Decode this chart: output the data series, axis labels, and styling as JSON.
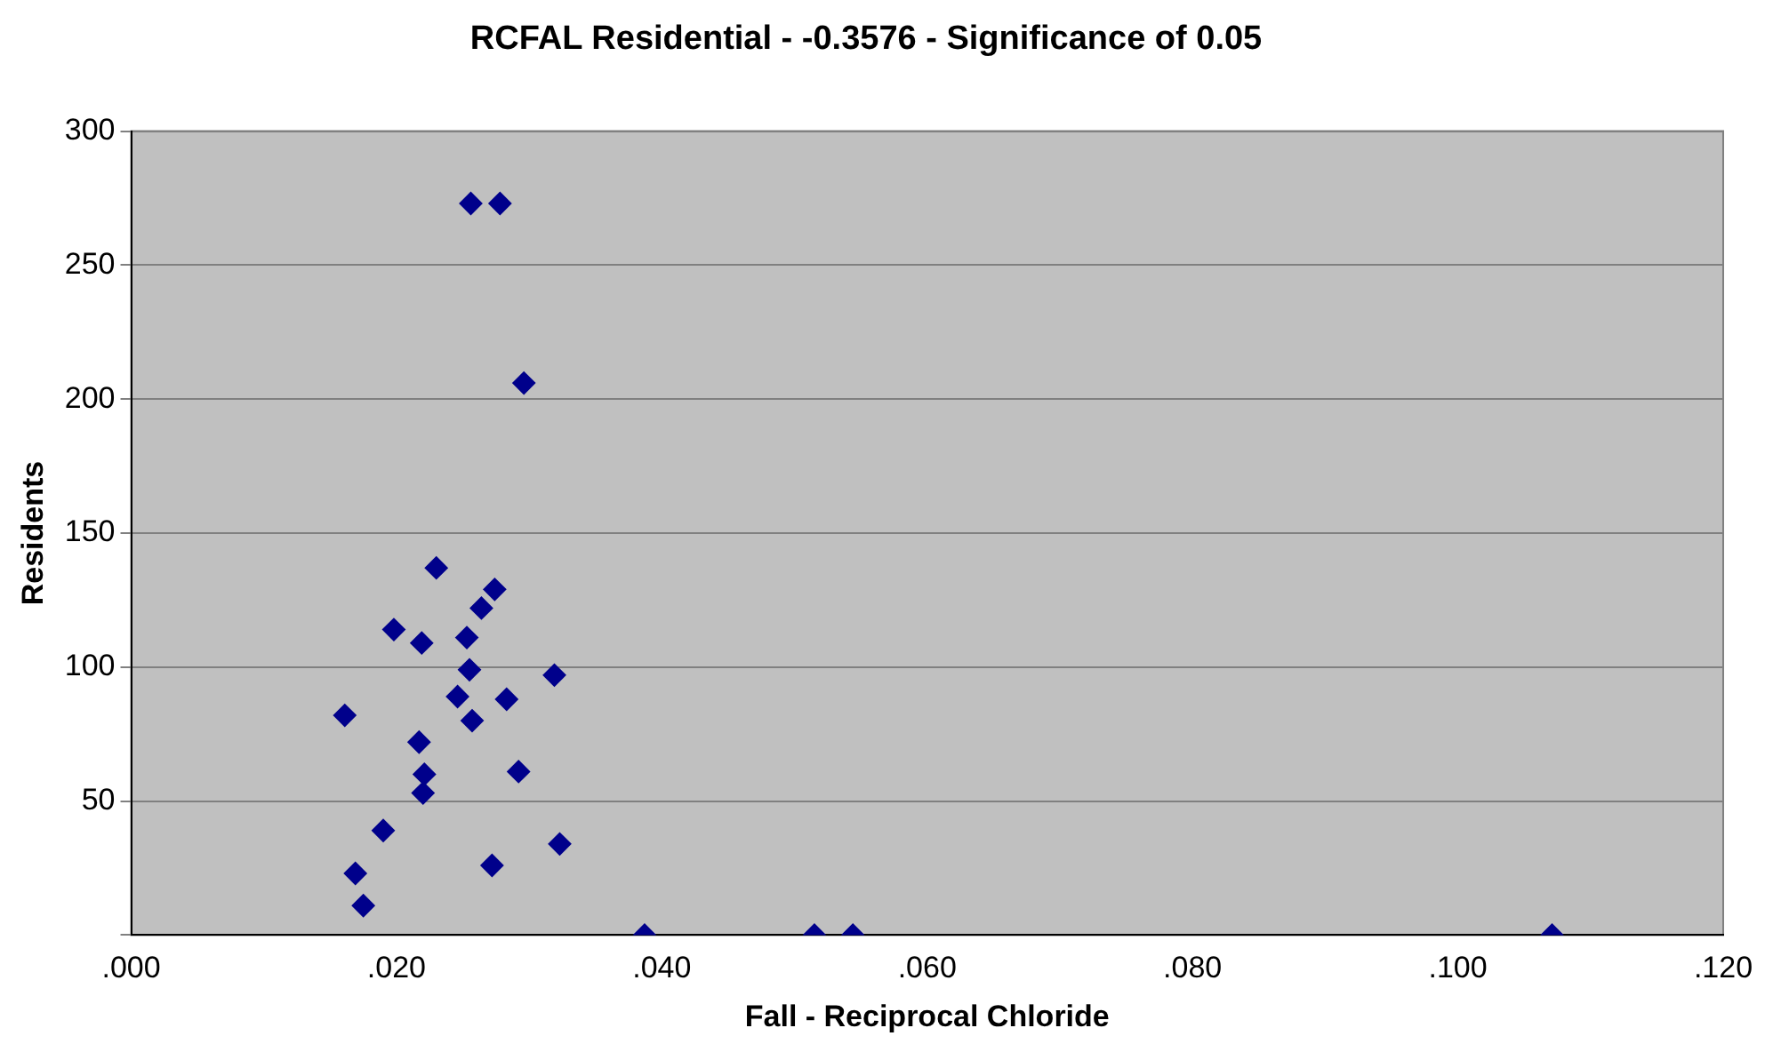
{
  "chart_data": {
    "type": "scatter",
    "title": "RCFAL Residential - -0.3576 - Significance of 0.05",
    "xlabel": "Fall - Reciprocal Chloride",
    "ylabel": "Residents",
    "x": [
      0.0256,
      0.0278,
      0.0296,
      0.023,
      0.0274,
      0.0264,
      0.0198,
      0.0219,
      0.0253,
      0.0255,
      0.0319,
      0.0246,
      0.0283,
      0.0161,
      0.0257,
      0.0217,
      0.0292,
      0.0221,
      0.022,
      0.019,
      0.0323,
      0.0169,
      0.0272,
      0.0175,
      0.0387,
      0.0515,
      0.0544,
      0.1071
    ],
    "series": [
      {
        "color": "#00008b",
        "values": [
          273,
          273,
          206,
          137,
          129,
          122,
          114,
          109,
          111,
          99,
          97,
          89,
          88,
          82,
          80,
          72,
          61,
          60,
          53,
          39,
          34,
          23,
          26,
          11,
          0,
          0,
          0,
          0
        ]
      }
    ],
    "xlim": [
      0,
      0.12
    ],
    "xticks": [
      {
        "value": 0,
        "label": ".000"
      },
      {
        "value": 0.02,
        "label": ".020"
      },
      {
        "value": 0.04,
        "label": ".040"
      },
      {
        "value": 0.06,
        "label": ".060"
      },
      {
        "value": 0.08,
        "label": ".080"
      },
      {
        "value": 0.1,
        "label": ".100"
      },
      {
        "value": 0.12,
        "label": ".120"
      }
    ],
    "ylim": [
      0,
      300
    ],
    "yticks": [
      {
        "value": 0,
        "label": null
      },
      50,
      100,
      150,
      200,
      250,
      300
    ],
    "grid": "y",
    "marker": "diamond",
    "legend": false
  }
}
